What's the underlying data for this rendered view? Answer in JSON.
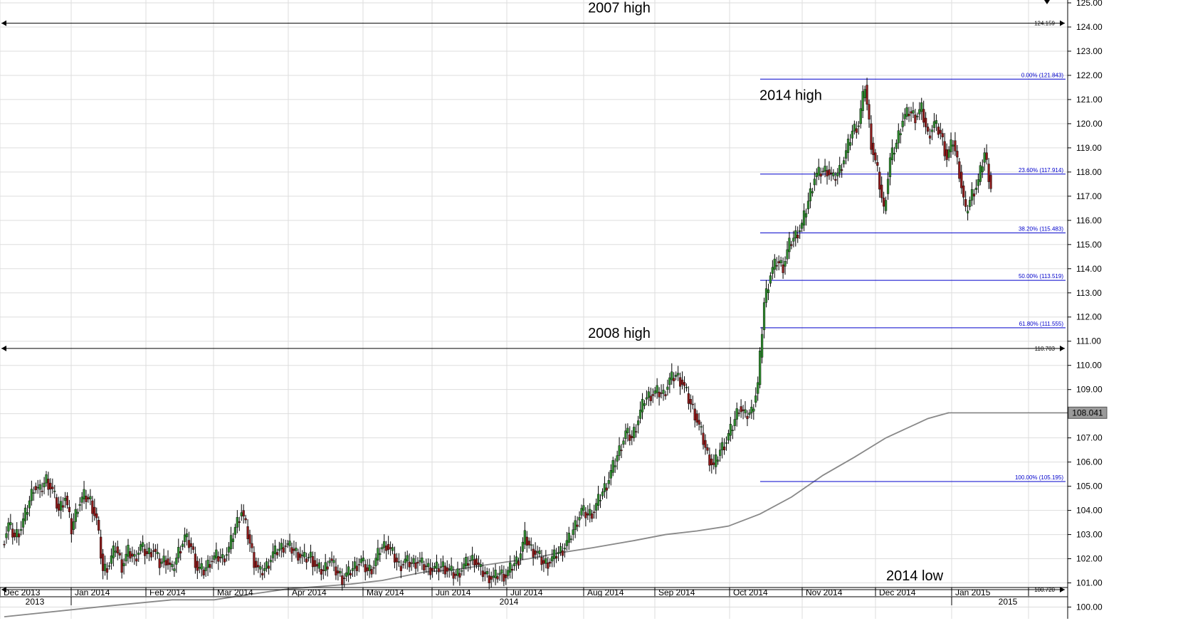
{
  "chart_data": {
    "type": "candlestick",
    "title": "",
    "xlabel": "",
    "ylabel": "",
    "ylim": [
      99.75,
      125.0
    ],
    "y_ticks": [
      "100.00",
      "101.00",
      "102.00",
      "103.00",
      "104.00",
      "105.00",
      "106.00",
      "107.00",
      "108.00",
      "109.00",
      "110.00",
      "111.00",
      "112.00",
      "113.00",
      "114.00",
      "115.00",
      "116.00",
      "117.00",
      "118.00",
      "119.00",
      "120.00",
      "121.00",
      "122.00",
      "123.00",
      "124.00",
      "125.00"
    ],
    "x_month_labels": [
      "Dec 2013",
      "Jan 2014",
      "Feb 2014",
      "Mar 2014",
      "Apr 2014",
      "May 2014",
      "Jun 2014",
      "Jul 2014",
      "Aug 2014",
      "Sep 2014",
      "Oct 2014",
      "Nov 2014",
      "Dec 2014",
      "Jan 2015"
    ],
    "x_year_labels": [
      "2013",
      "2014",
      "2015"
    ],
    "grid": true,
    "colors": {
      "up": "#2e8b2e",
      "down": "#8b1a1a",
      "fib": "#0000cc",
      "hline": "#000000",
      "ma": "#888888",
      "grid": "#dddddd"
    },
    "horizontal_lines": [
      {
        "label": "124.159",
        "value": 124.159,
        "annotation": "2007 high"
      },
      {
        "label": "110.703",
        "value": 110.703,
        "annotation": "2008 high"
      },
      {
        "label": "100.720",
        "value": 100.72,
        "annotation": "2014 low"
      }
    ],
    "fibonacci_levels": [
      {
        "label": "0.00% (121.843)",
        "value": 121.843
      },
      {
        "label": "23.60% (117.914)",
        "value": 117.914
      },
      {
        "label": "38.20% (115.483)",
        "value": 115.483
      },
      {
        "label": "50.00% (113.519)",
        "value": 113.519
      },
      {
        "label": "61.80% (111.555)",
        "value": 111.555
      },
      {
        "label": "100.00% (105.195)",
        "value": 105.195
      }
    ],
    "fib_annotation": "2014 high",
    "last_value_label": "108.041",
    "moving_average": [
      [
        0,
        99.6
      ],
      [
        50,
        100.05
      ],
      [
        80,
        100.3
      ],
      [
        100,
        100.3
      ],
      [
        115,
        100.5
      ],
      [
        135,
        100.75
      ],
      [
        165,
        100.95
      ],
      [
        180,
        101.1
      ],
      [
        200,
        101.45
      ],
      [
        215,
        101.55
      ],
      [
        230,
        101.75
      ],
      [
        250,
        102.0
      ],
      [
        265,
        102.25
      ],
      [
        280,
        102.45
      ],
      [
        300,
        102.75
      ],
      [
        315,
        103.0
      ],
      [
        330,
        103.15
      ],
      [
        345,
        103.35
      ],
      [
        360,
        103.85
      ],
      [
        375,
        104.55
      ],
      [
        390,
        105.45
      ],
      [
        405,
        106.2
      ],
      [
        420,
        107.0
      ],
      [
        435,
        107.6
      ],
      [
        440,
        107.8
      ],
      [
        450,
        108.04
      ]
    ],
    "candles_close": [
      [
        0,
        102.6
      ],
      [
        3,
        103.4
      ],
      [
        6,
        102.9
      ],
      [
        9,
        103.3
      ],
      [
        12,
        104.1
      ],
      [
        15,
        105.0
      ],
      [
        18,
        104.8
      ],
      [
        21,
        105.3
      ],
      [
        24,
        104.8
      ],
      [
        27,
        104.0
      ],
      [
        30,
        104.6
      ],
      [
        33,
        103.2
      ],
      [
        36,
        104.2
      ],
      [
        39,
        104.6
      ],
      [
        42,
        104.4
      ],
      [
        45,
        103.6
      ],
      [
        48,
        101.5
      ],
      [
        51,
        101.8
      ],
      [
        54,
        102.5
      ],
      [
        57,
        101.7
      ],
      [
        60,
        102.3
      ],
      [
        63,
        102.0
      ],
      [
        66,
        102.5
      ],
      [
        69,
        102.2
      ],
      [
        72,
        102.4
      ],
      [
        75,
        101.8
      ],
      [
        78,
        102.0
      ],
      [
        81,
        101.5
      ],
      [
        84,
        102.3
      ],
      [
        87,
        102.9
      ],
      [
        90,
        102.5
      ],
      [
        93,
        101.6
      ],
      [
        96,
        101.5
      ],
      [
        99,
        101.9
      ],
      [
        102,
        102.1
      ],
      [
        105,
        102.0
      ],
      [
        108,
        102.4
      ],
      [
        111,
        103.3
      ],
      [
        114,
        104.0
      ],
      [
        117,
        103.0
      ],
      [
        120,
        101.9
      ],
      [
        123,
        101.4
      ],
      [
        126,
        101.7
      ],
      [
        129,
        102.2
      ],
      [
        132,
        102.4
      ],
      [
        135,
        102.6
      ],
      [
        138,
        102.4
      ],
      [
        141,
        102.2
      ],
      [
        144,
        102.0
      ],
      [
        147,
        102.1
      ],
      [
        150,
        101.6
      ],
      [
        153,
        101.5
      ],
      [
        156,
        102.0
      ],
      [
        159,
        101.5
      ],
      [
        162,
        101.2
      ],
      [
        165,
        101.4
      ],
      [
        168,
        101.7
      ],
      [
        171,
        101.9
      ],
      [
        174,
        101.5
      ],
      [
        177,
        101.7
      ],
      [
        180,
        102.4
      ],
      [
        183,
        102.6
      ],
      [
        186,
        102.2
      ],
      [
        189,
        101.7
      ],
      [
        192,
        101.9
      ],
      [
        195,
        101.8
      ],
      [
        198,
        101.9
      ],
      [
        201,
        101.7
      ],
      [
        204,
        101.6
      ],
      [
        207,
        101.6
      ],
      [
        210,
        101.7
      ],
      [
        213,
        101.5
      ],
      [
        216,
        101.3
      ],
      [
        219,
        101.6
      ],
      [
        222,
        101.9
      ],
      [
        225,
        102.0
      ],
      [
        228,
        101.5
      ],
      [
        231,
        101.3
      ],
      [
        234,
        101.2
      ],
      [
        237,
        101.4
      ],
      [
        240,
        101.3
      ],
      [
        243,
        101.7
      ],
      [
        246,
        102.0
      ],
      [
        249,
        102.9
      ],
      [
        252,
        102.4
      ],
      [
        255,
        102.2
      ],
      [
        258,
        101.8
      ],
      [
        261,
        101.9
      ],
      [
        264,
        102.2
      ],
      [
        267,
        102.4
      ],
      [
        270,
        102.8
      ],
      [
        273,
        103.4
      ],
      [
        276,
        104.0
      ],
      [
        279,
        103.8
      ],
      [
        282,
        104.0
      ],
      [
        285,
        104.6
      ],
      [
        288,
        105.1
      ],
      [
        291,
        105.8
      ],
      [
        294,
        106.5
      ],
      [
        297,
        107.2
      ],
      [
        300,
        107.0
      ],
      [
        303,
        107.8
      ],
      [
        306,
        108.6
      ],
      [
        309,
        108.8
      ],
      [
        312,
        108.9
      ],
      [
        315,
        108.8
      ],
      [
        318,
        109.4
      ],
      [
        321,
        109.6
      ],
      [
        324,
        109.3
      ],
      [
        327,
        108.6
      ],
      [
        330,
        108.0
      ],
      [
        333,
        107.2
      ],
      [
        336,
        106.3
      ],
      [
        339,
        105.8
      ],
      [
        342,
        106.5
      ],
      [
        345,
        106.9
      ],
      [
        348,
        107.5
      ],
      [
        351,
        108.3
      ],
      [
        354,
        107.9
      ],
      [
        357,
        108.1
      ],
      [
        360,
        109.2
      ],
      [
        363,
        112.6
      ],
      [
        366,
        113.8
      ],
      [
        369,
        114.3
      ],
      [
        372,
        114.1
      ],
      [
        375,
        115.0
      ],
      [
        378,
        115.4
      ],
      [
        381,
        115.8
      ],
      [
        384,
        116.8
      ],
      [
        387,
        117.8
      ],
      [
        390,
        118.0
      ],
      [
        393,
        118.1
      ],
      [
        396,
        117.7
      ],
      [
        399,
        118.1
      ],
      [
        402,
        118.8
      ],
      [
        405,
        119.7
      ],
      [
        408,
        120.0
      ],
      [
        411,
        121.6
      ],
      [
        414,
        119.2
      ],
      [
        417,
        118.0
      ],
      [
        420,
        116.4
      ],
      [
        423,
        118.5
      ],
      [
        426,
        119.2
      ],
      [
        429,
        120.2
      ],
      [
        432,
        120.5
      ],
      [
        435,
        120.3
      ],
      [
        438,
        120.6
      ],
      [
        441,
        119.5
      ],
      [
        444,
        120.0
      ],
      [
        447,
        119.6
      ],
      [
        450,
        118.6
      ],
      [
        453,
        119.3
      ],
      [
        456,
        118.0
      ],
      [
        459,
        116.3
      ],
      [
        462,
        117.1
      ],
      [
        465,
        117.6
      ],
      [
        468,
        118.8
      ],
      [
        471,
        117.4
      ]
    ]
  }
}
